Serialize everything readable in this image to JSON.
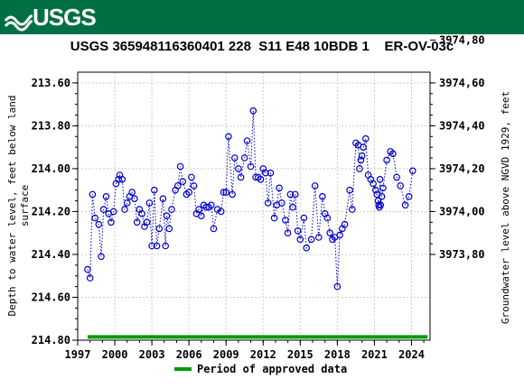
{
  "header": {
    "agency": "USGS",
    "title": "USGS 365948116360401 228  S11 E48 10BDB 1    ER-OV-03c"
  },
  "colors": {
    "banner": "#006f41",
    "series": "#0000cc",
    "approved": "#009900",
    "grid": "#cccccc"
  },
  "chart_data": {
    "type": "scatter",
    "title": "USGS 365948116360401 228  S11 E48 10BDB 1    ER-OV-03c",
    "xlabel": "",
    "ylabel_left": "Depth to water level, feet below land surface",
    "ylabel_left_lines": [
      "Depth to water level, feet below land",
      "surface"
    ],
    "ylabel_right": "Groundwater level above NGVD 1929, feet",
    "x_ticks": [
      "1997",
      "2000",
      "2003",
      "2006",
      "2009",
      "2012",
      "2015",
      "2018",
      "2021",
      "2024"
    ],
    "x_tick_values": [
      1997,
      2000,
      2003,
      2006,
      2009,
      2012,
      2015,
      2018,
      2021,
      2024
    ],
    "xlim": [
      1997,
      2025.5
    ],
    "y_left_ticks": [
      "213.60",
      "213.80",
      "214.00",
      "214.20",
      "214.40",
      "214.60",
      "214.80"
    ],
    "y_left_tick_values": [
      213.6,
      213.8,
      214.0,
      214.2,
      214.4,
      214.6,
      214.8
    ],
    "ylim_left": [
      213.55,
      214.8
    ],
    "y_left_inverted": true,
    "y_right_ticks": [
      "3974,80",
      "3974,60",
      "3974,40",
      "3974,20",
      "3974,00",
      "3973,80"
    ],
    "y_right_tick_values": [
      3974.8,
      3974.6,
      3974.4,
      3974.2,
      3974.0,
      3973.8
    ],
    "datum_sum": 4188.2,
    "grid": true,
    "legend": {
      "label": "Period of approved data",
      "position": "bottom"
    },
    "approved_period": [
      1997.8,
      2025.3
    ],
    "series": [
      {
        "values": [
          [
            1997.8,
            214.47
          ],
          [
            1998.0,
            214.51
          ],
          [
            1998.2,
            214.12
          ],
          [
            1998.4,
            214.23
          ],
          [
            1998.7,
            214.26
          ],
          [
            1998.9,
            214.41
          ],
          [
            1999.1,
            214.19
          ],
          [
            1999.3,
            214.13
          ],
          [
            1999.5,
            214.21
          ],
          [
            1999.7,
            214.25
          ],
          [
            1999.9,
            214.2
          ],
          [
            2000.1,
            214.07
          ],
          [
            2000.3,
            214.05
          ],
          [
            2000.4,
            214.03
          ],
          [
            2000.6,
            214.05
          ],
          [
            2000.8,
            214.19
          ],
          [
            2001.0,
            214.16
          ],
          [
            2001.2,
            214.13
          ],
          [
            2001.4,
            214.11
          ],
          [
            2001.6,
            214.14
          ],
          [
            2001.8,
            214.25
          ],
          [
            2002.0,
            214.19
          ],
          [
            2002.2,
            214.21
          ],
          [
            2002.4,
            214.27
          ],
          [
            2002.6,
            214.25
          ],
          [
            2002.8,
            214.16
          ],
          [
            2003.0,
            214.36
          ],
          [
            2003.2,
            214.1
          ],
          [
            2003.4,
            214.36
          ],
          [
            2003.6,
            214.28
          ],
          [
            2003.9,
            214.14
          ],
          [
            2004.1,
            214.36
          ],
          [
            2004.2,
            214.22
          ],
          [
            2004.4,
            214.28
          ],
          [
            2004.6,
            214.19
          ],
          [
            2004.9,
            214.1
          ],
          [
            2005.1,
            214.08
          ],
          [
            2005.3,
            213.99
          ],
          [
            2005.5,
            214.06
          ],
          [
            2005.8,
            214.12
          ],
          [
            2006.0,
            214.11
          ],
          [
            2006.2,
            214.04
          ],
          [
            2006.4,
            214.08
          ],
          [
            2006.6,
            214.21
          ],
          [
            2006.8,
            214.19
          ],
          [
            2007.0,
            214.22
          ],
          [
            2007.2,
            214.17
          ],
          [
            2007.4,
            214.18
          ],
          [
            2007.6,
            214.18
          ],
          [
            2007.8,
            214.17
          ],
          [
            2008.0,
            214.28
          ],
          [
            2008.3,
            214.19
          ],
          [
            2008.6,
            214.2
          ],
          [
            2008.8,
            214.11
          ],
          [
            2009.0,
            214.11
          ],
          [
            2009.2,
            213.85
          ],
          [
            2009.5,
            214.12
          ],
          [
            2009.7,
            213.95
          ],
          [
            2010.0,
            214.0
          ],
          [
            2010.2,
            214.04
          ],
          [
            2010.5,
            213.95
          ],
          [
            2010.7,
            213.87
          ],
          [
            2011.0,
            213.99
          ],
          [
            2011.2,
            213.73
          ],
          [
            2011.4,
            214.04
          ],
          [
            2011.6,
            214.04
          ],
          [
            2011.8,
            214.05
          ],
          [
            2012.0,
            214.0
          ],
          [
            2012.2,
            214.02
          ],
          [
            2012.4,
            214.16
          ],
          [
            2012.6,
            214.02
          ],
          [
            2012.9,
            214.23
          ],
          [
            2013.1,
            214.17
          ],
          [
            2013.3,
            214.09
          ],
          [
            2013.5,
            214.16
          ],
          [
            2013.8,
            214.24
          ],
          [
            2014.0,
            214.3
          ],
          [
            2014.2,
            214.12
          ],
          [
            2014.4,
            214.18
          ],
          [
            2014.6,
            214.12
          ],
          [
            2014.8,
            214.29
          ],
          [
            2015.0,
            214.33
          ],
          [
            2015.3,
            214.23
          ],
          [
            2015.5,
            214.37
          ],
          [
            2015.9,
            214.33
          ],
          [
            2016.2,
            214.08
          ],
          [
            2016.5,
            214.32
          ],
          [
            2016.8,
            214.13
          ],
          [
            2017.0,
            214.21
          ],
          [
            2017.2,
            214.23
          ],
          [
            2017.4,
            214.3
          ],
          [
            2017.6,
            214.33
          ],
          [
            2017.8,
            214.32
          ],
          [
            2018.0,
            214.55
          ],
          [
            2018.2,
            214.31
          ],
          [
            2018.4,
            214.28
          ],
          [
            2018.6,
            214.26
          ],
          [
            2019.0,
            214.1
          ],
          [
            2019.2,
            214.19
          ],
          [
            2019.5,
            213.88
          ],
          [
            2019.7,
            213.89
          ],
          [
            2019.8,
            214.0
          ],
          [
            2019.9,
            213.96
          ],
          [
            2020.0,
            213.94
          ],
          [
            2020.1,
            213.9
          ],
          [
            2020.3,
            213.86
          ],
          [
            2020.5,
            214.03
          ],
          [
            2020.7,
            214.05
          ],
          [
            2020.9,
            214.07
          ],
          [
            2021.1,
            214.1
          ],
          [
            2021.2,
            214.12
          ],
          [
            2021.3,
            214.15
          ],
          [
            2021.35,
            214.17
          ],
          [
            2021.4,
            214.18
          ],
          [
            2021.45,
            214.05
          ],
          [
            2021.5,
            214.17
          ],
          [
            2021.6,
            214.13
          ],
          [
            2021.7,
            214.09
          ],
          [
            2022.0,
            213.96
          ],
          [
            2022.3,
            213.92
          ],
          [
            2022.5,
            213.93
          ],
          [
            2022.8,
            214.04
          ],
          [
            2023.1,
            214.08
          ],
          [
            2023.5,
            214.17
          ],
          [
            2023.8,
            214.13
          ],
          [
            2024.1,
            214.01
          ]
        ]
      }
    ]
  }
}
